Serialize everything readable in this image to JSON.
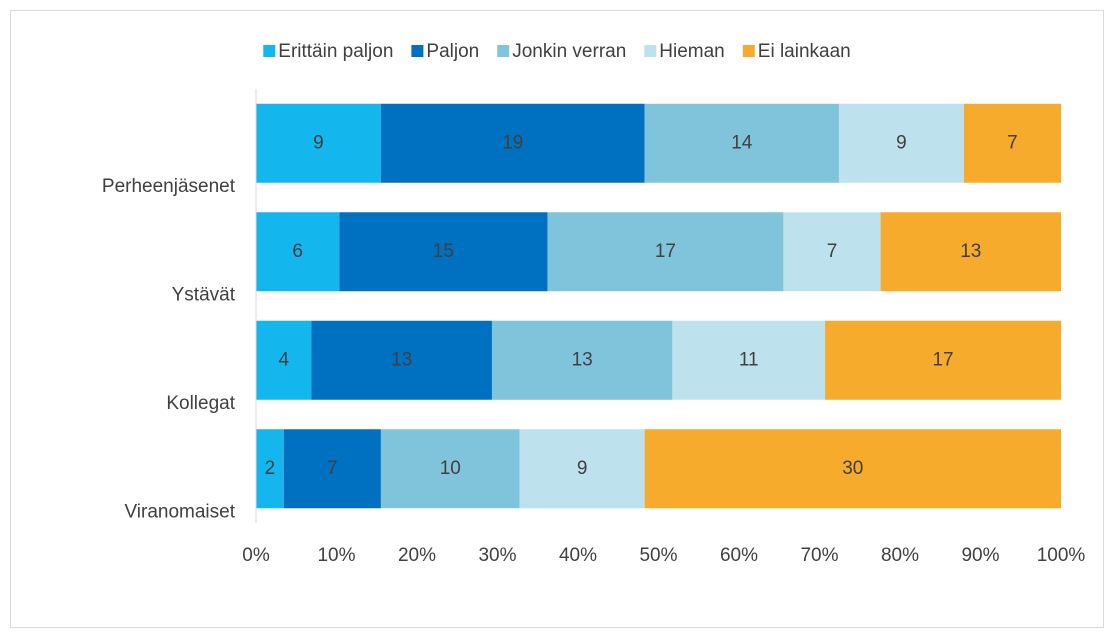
{
  "chart_data": {
    "type": "bar",
    "orientation": "horizontal",
    "stacking": "percent",
    "categories": [
      "Perheenjäsenet",
      "Ystävät",
      "Kollegat",
      "Viranomaiset"
    ],
    "series": [
      {
        "name": "Erittäin paljon",
        "color": "#14b6ee",
        "values": [
          9,
          6,
          4,
          2
        ]
      },
      {
        "name": "Paljon",
        "color": "#0070c0",
        "values": [
          19,
          15,
          13,
          7
        ]
      },
      {
        "name": "Jonkin verran",
        "color": "#80c4dc",
        "values": [
          14,
          17,
          13,
          10
        ]
      },
      {
        "name": "Hieman",
        "color": "#bee2ed",
        "values": [
          9,
          7,
          11,
          9
        ]
      },
      {
        "name": "Ei lainkaan",
        "color": "#f6ab2d",
        "values": [
          7,
          13,
          17,
          30
        ]
      }
    ],
    "xlim": [
      0,
      100
    ],
    "xticks": [
      {
        "value": 0,
        "label": "0%"
      },
      {
        "value": 10,
        "label": "10%"
      },
      {
        "value": 20,
        "label": "20%"
      },
      {
        "value": 30,
        "label": "30%"
      },
      {
        "value": 40,
        "label": "40%"
      },
      {
        "value": 50,
        "label": "50%"
      },
      {
        "value": 60,
        "label": "60%"
      },
      {
        "value": 70,
        "label": "70%"
      },
      {
        "value": 80,
        "label": "80%"
      },
      {
        "value": 90,
        "label": "90%"
      },
      {
        "value": 100,
        "label": "100%"
      }
    ],
    "grid": false,
    "legend": "top"
  }
}
